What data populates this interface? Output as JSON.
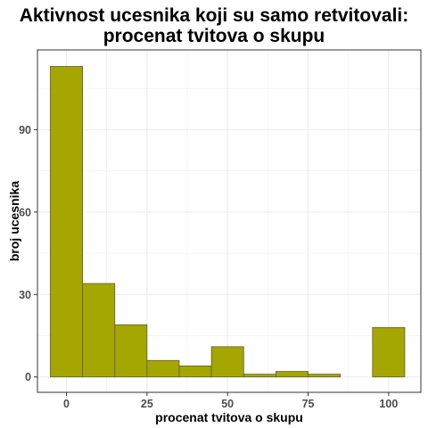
{
  "chart_data": {
    "type": "bar",
    "title_lines": [
      "Aktivnost ucesnika koji su samo retvitovali:",
      "procenat tvitova o skupu"
    ],
    "xlabel": "procenat tvitova o skupu",
    "ylabel": "broj ucesnika",
    "bin_width": 10,
    "bins": [
      {
        "center": 0,
        "count": 113
      },
      {
        "center": 10,
        "count": 34
      },
      {
        "center": 20,
        "count": 19
      },
      {
        "center": 30,
        "count": 6
      },
      {
        "center": 40,
        "count": 4
      },
      {
        "center": 50,
        "count": 11
      },
      {
        "center": 60,
        "count": 1
      },
      {
        "center": 70,
        "count": 2
      },
      {
        "center": 80,
        "count": 1
      },
      {
        "center": 90,
        "count": 0
      },
      {
        "center": 100,
        "count": 18
      }
    ],
    "xlim": [
      -9,
      110
    ],
    "ylim": [
      -5.6,
      119
    ],
    "x_ticks": [
      0,
      25,
      50,
      75,
      100
    ],
    "x_tick_labels": [
      "0",
      "25",
      "50",
      "75",
      "100"
    ],
    "y_ticks": [
      0,
      30,
      60,
      90
    ],
    "y_tick_labels": [
      "0",
      "30",
      "60",
      "90"
    ],
    "grid": true,
    "bar_fill": "#a6a600",
    "bar_outline": "#5e5e2e",
    "grid_color": "#ebebeb",
    "panel_border": "#333333"
  }
}
